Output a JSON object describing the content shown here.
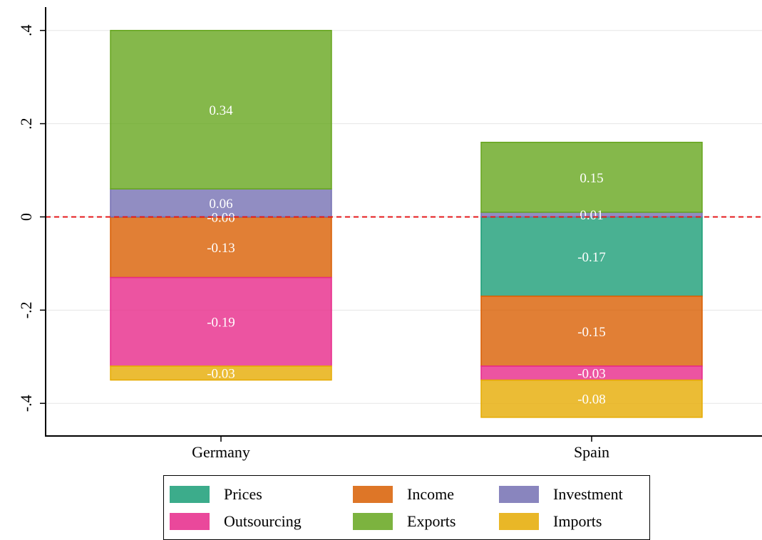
{
  "chart_data": {
    "type": "bar",
    "stacked": true,
    "categories": [
      "Germany",
      "Spain"
    ],
    "series": [
      {
        "name": "Prices",
        "color": "#1b9e77",
        "values": [
          -0.0,
          -0.17
        ],
        "labels": [
          "-0.00",
          "-0.17"
        ]
      },
      {
        "name": "Income",
        "color": "#d95f02",
        "values": [
          -0.13,
          -0.15
        ],
        "labels": [
          "-0.13",
          "-0.15"
        ]
      },
      {
        "name": "Investment",
        "color": "#7570b3",
        "values": [
          0.06,
          0.01
        ],
        "labels": [
          "0.06",
          "0.01"
        ]
      },
      {
        "name": "Outsourcing",
        "color": "#e7298a",
        "values": [
          -0.19,
          -0.03
        ],
        "labels": [
          "-0.19",
          "-0.03"
        ]
      },
      {
        "name": "Exports",
        "color": "#66a61e",
        "values": [
          0.34,
          0.15
        ],
        "labels": [
          "0.34",
          "0.15"
        ]
      },
      {
        "name": "Imports",
        "color": "#e6ab02",
        "values": [
          -0.03,
          -0.08
        ],
        "labels": [
          "-0.03",
          "-0.08"
        ]
      }
    ],
    "yticks": [
      {
        "value": 0.4,
        "label": ".4"
      },
      {
        "value": 0.2,
        "label": ".2"
      },
      {
        "value": 0,
        "label": "0"
      },
      {
        "value": -0.2,
        "label": "-.2"
      },
      {
        "value": -0.4,
        "label": "-.4"
      }
    ],
    "ylim": [
      -0.47,
      0.45
    ],
    "grid": true,
    "reference_line": {
      "value": 0,
      "color": "#e41a1c",
      "style": "dashed"
    },
    "legend": {
      "position": "bottom",
      "columns": 3
    },
    "title": "",
    "xlabel": "",
    "ylabel": ""
  }
}
